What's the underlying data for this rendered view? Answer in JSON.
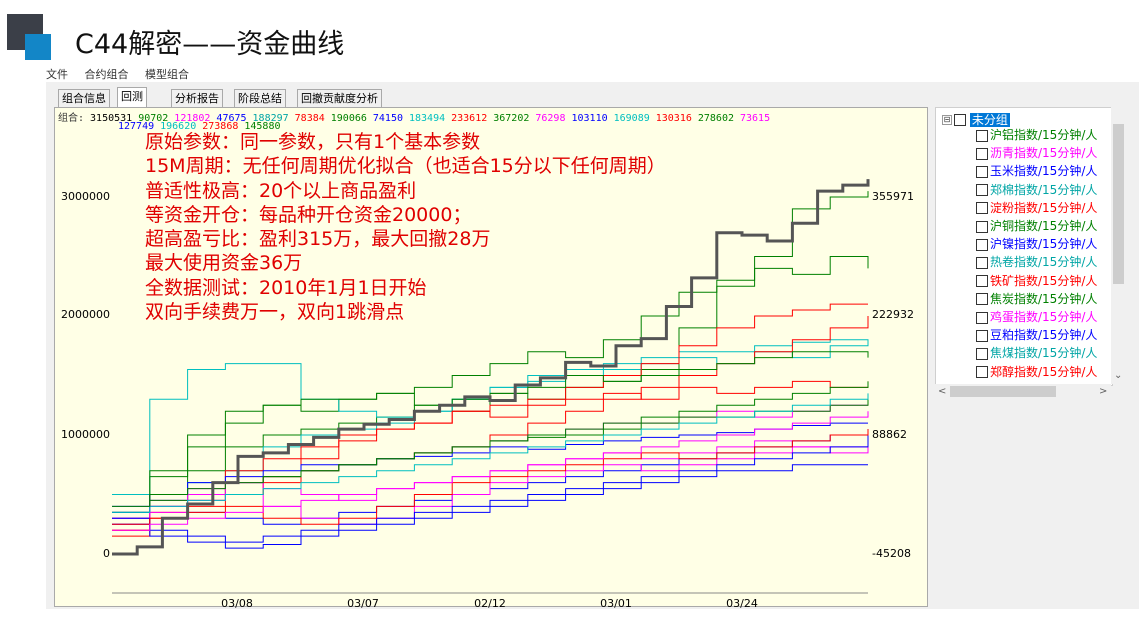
{
  "slide": {
    "title": "C44解密——资金曲线"
  },
  "menu": [
    "文件",
    "合约组合",
    "模型组合"
  ],
  "tabs": [
    {
      "label": "组合信息",
      "active": false
    },
    {
      "label": "回测",
      "active": true
    },
    {
      "label": "分析报告",
      "active": false
    },
    {
      "label": "阶段总结",
      "active": false
    },
    {
      "label": "回撤贡献度分析",
      "active": false
    }
  ],
  "legend": {
    "prefix": "组合:",
    "row1": [
      {
        "v": "3150531",
        "c": "#000000"
      },
      {
        "v": "90702",
        "c": "#008000"
      },
      {
        "v": "121802",
        "c": "#ff00ff"
      },
      {
        "v": "47675",
        "c": "#0000ff"
      },
      {
        "v": "188297",
        "c": "#00a5a5"
      },
      {
        "v": "78384",
        "c": "#ff0000"
      },
      {
        "v": "190066",
        "c": "#008000"
      },
      {
        "v": "74150",
        "c": "#0000ff"
      },
      {
        "v": "183494",
        "c": "#00bfbf"
      },
      {
        "v": "233612",
        "c": "#ff0000"
      },
      {
        "v": "367202",
        "c": "#008000"
      },
      {
        "v": "76298",
        "c": "#ff00ff"
      },
      {
        "v": "103110",
        "c": "#0000ff"
      },
      {
        "v": "169089",
        "c": "#00bfbf"
      },
      {
        "v": "130316",
        "c": "#ff0000"
      },
      {
        "v": "278602",
        "c": "#008000"
      },
      {
        "v": "73615",
        "c": "#ff00ff"
      }
    ],
    "row2": [
      {
        "v": "127749",
        "c": "#0000ff"
      },
      {
        "v": "196620",
        "c": "#00bfbf"
      },
      {
        "v": "273868",
        "c": "#ff0000"
      },
      {
        "v": "145880",
        "c": "#008000"
      }
    ]
  },
  "notes": [
    "原始参数：同一参数，只有1个基本参数",
    "15M周期：无任何周期优化拟合（也适合15分以下任何周期）",
    "普适性极高：20个以上商品盈利",
    "等资金开仓：每品种开仓资金20000；",
    "超高盈亏比：盈利315万，最大回撤28万",
    "最大使用资金36万",
    "全数据测试：2010年1月1日开始",
    "双向手续费万一，双向1跳滑点"
  ],
  "chart_data": {
    "type": "line",
    "ylim": [
      -100000,
      3300000
    ],
    "left_axis_ticks": [
      "3000000",
      "2000000",
      "1000000",
      "0"
    ],
    "right_axis_ticks": [
      "355971",
      "222932",
      "88862",
      "-45208"
    ],
    "x_tick_labels": [
      "03/08",
      "03/07",
      "02/12",
      "03/01",
      "03/24"
    ],
    "total_series": {
      "name": "组合",
      "color": "#555555",
      "values": [
        0,
        60000,
        300000,
        420000,
        600000,
        820000,
        850000,
        920000,
        980000,
        1050000,
        1090000,
        1130000,
        1200000,
        1250000,
        1320000,
        1290000,
        1420000,
        1480000,
        1610000,
        1580000,
        1750000,
        1810000,
        2080000,
        2320000,
        2700000,
        2680000,
        2630000,
        2780000,
        3050000,
        3100000,
        3150000
      ]
    },
    "series": [
      {
        "color": "#008000",
        "values": [
          300000,
          500000,
          700000,
          900000,
          1000000,
          1050000,
          1100000,
          1150000,
          1250000,
          1200000,
          1350000,
          1300000,
          1400000,
          1450000,
          1550000,
          1900000,
          2300000,
          2500000,
          2900000,
          3000000,
          3050000
        ]
      },
      {
        "color": "#008000",
        "values": [
          350000,
          650000,
          900000,
          1100000,
          1250000,
          1200000,
          1300000,
          1350000,
          1400000,
          1500000,
          1600000,
          1700000,
          1650000,
          1800000,
          2000000,
          2200000,
          2250000,
          2400000,
          2350000,
          2500000,
          2400000
        ]
      },
      {
        "color": "#00bfbf",
        "values": [
          500000,
          1300000,
          1550000,
          1600000,
          1600000,
          1300000,
          1200000,
          1150000,
          1200000,
          1300000,
          1400000,
          1500000,
          1550000,
          1600000,
          1650000,
          1700000,
          1700000,
          1750000,
          1780000,
          1800000,
          1750000
        ]
      },
      {
        "color": "#00bfbf",
        "values": [
          250000,
          450000,
          600000,
          700000,
          900000,
          1000000,
          1050000,
          1100000,
          1200000,
          1300000,
          1400000,
          1450000,
          1500000,
          1550000,
          1600000,
          1650000,
          1600000,
          1700000,
          1650000,
          1750000,
          1800000
        ]
      },
      {
        "color": "#ff0000",
        "values": [
          200000,
          400000,
          500000,
          700000,
          800000,
          900000,
          1000000,
          1050000,
          1100000,
          1200000,
          1250000,
          1300000,
          1400000,
          1500000,
          1600000,
          1750000,
          1900000,
          2000000,
          2050000,
          2100000,
          2100000
        ]
      },
      {
        "color": "#ff0000",
        "values": [
          150000,
          300000,
          400000,
          500000,
          600000,
          700000,
          750000,
          800000,
          850000,
          900000,
          1000000,
          1100000,
          1200000,
          1300000,
          1400000,
          1500000,
          1600000,
          1700000,
          1800000,
          1900000,
          2000000
        ]
      },
      {
        "color": "#008000",
        "values": [
          300000,
          700000,
          1000000,
          1200000,
          1250000,
          1300000,
          1300000,
          1350000,
          1250000,
          1300000,
          1350000,
          1400000,
          1500000,
          1450000,
          1500000,
          1550000,
          1600000,
          1650000,
          1700000,
          1700000,
          1650000
        ]
      },
      {
        "color": "#ff00ff",
        "values": [
          300000,
          450000,
          550000,
          600000,
          650000,
          700000,
          750000,
          800000,
          850000,
          900000,
          950000,
          1000000,
          1050000,
          1100000,
          1100000,
          1150000,
          1200000,
          1150000,
          1200000,
          1250000,
          1250000
        ]
      },
      {
        "color": "#ff0000",
        "values": [
          200000,
          350000,
          450000,
          500000,
          650000,
          800000,
          950000,
          1050000,
          1100000,
          1200000,
          1150000,
          1250000,
          1300000,
          1350000,
          1300000,
          1400000,
          1350000,
          1400000,
          1450000,
          1400000,
          1450000
        ]
      },
      {
        "color": "#0000ff",
        "values": [
          400000,
          500000,
          600000,
          650000,
          700000,
          750000,
          750000,
          800000,
          820000,
          850000,
          900000,
          880000,
          920000,
          950000,
          980000,
          1000000,
          1020000,
          1050000,
          1080000,
          1100000,
          1100000
        ]
      },
      {
        "color": "#008000",
        "values": [
          350000,
          450000,
          500000,
          600000,
          650000,
          700000,
          750000,
          800000,
          850000,
          900000,
          950000,
          980000,
          1000000,
          1050000,
          1100000,
          1150000,
          1150000,
          1200000,
          1200000,
          1250000,
          1300000
        ]
      },
      {
        "color": "#ff00ff",
        "values": [
          250000,
          350000,
          500000,
          600000,
          550000,
          500000,
          450000,
          550000,
          600000,
          650000,
          700000,
          750000,
          800000,
          850000,
          800000,
          850000,
          900000,
          950000,
          900000,
          900000,
          950000
        ]
      },
      {
        "color": "#0000ff",
        "values": [
          350000,
          400000,
          350000,
          300000,
          250000,
          300000,
          350000,
          400000,
          450000,
          500000,
          550000,
          600000,
          650000,
          700000,
          750000,
          800000,
          850000,
          900000,
          950000,
          1000000,
          1050000
        ]
      },
      {
        "color": "#ff00ff",
        "values": [
          300000,
          400000,
          450000,
          500000,
          400000,
          300000,
          250000,
          300000,
          400000,
          500000,
          600000,
          650000,
          700000,
          750000,
          700000,
          750000,
          800000,
          850000,
          900000,
          850000,
          900000
        ]
      },
      {
        "color": "#0000ff",
        "values": [
          300000,
          200000,
          150000,
          100000,
          150000,
          200000,
          250000,
          300000,
          350000,
          400000,
          450000,
          500000,
          550000,
          600000,
          650000,
          700000,
          750000,
          800000,
          850000,
          900000,
          1000000
        ]
      },
      {
        "color": "#0000ff",
        "values": [
          250000,
          150000,
          100000,
          50000,
          80000,
          150000,
          200000,
          250000,
          300000,
          350000,
          400000,
          450000,
          500000,
          550000,
          600000,
          650000,
          700000,
          700000,
          750000,
          750000,
          750000
        ]
      },
      {
        "color": "#ff0000",
        "values": [
          250000,
          300000,
          350000,
          400000,
          300000,
          250000,
          300000,
          400000,
          500000,
          600000,
          650000,
          700000,
          750000,
          800000,
          850000,
          800000,
          850000,
          900000,
          950000,
          1000000,
          1050000
        ]
      },
      {
        "color": "#00bfbf",
        "values": [
          350000,
          400000,
          450000,
          500000,
          550000,
          600000,
          650000,
          700000,
          750000,
          800000,
          850000,
          900000,
          950000,
          1000000,
          1050000,
          1100000,
          1150000,
          1200000,
          1250000,
          1300000,
          1350000
        ]
      },
      {
        "color": "#008000",
        "values": [
          400000,
          500000,
          550000,
          600000,
          650000,
          700000,
          750000,
          800000,
          850000,
          900000,
          950000,
          1000000,
          1050000,
          1100000,
          1150000,
          1200000,
          1250000,
          1300000,
          1350000,
          1400000,
          1450000
        ]
      },
      {
        "color": "#ff00ff",
        "values": [
          200000,
          250000,
          300000,
          350000,
          400000,
          450000,
          500000,
          550000,
          600000,
          650000,
          700000,
          750000,
          800000,
          850000,
          900000,
          950000,
          1000000,
          1050000,
          1100000,
          1150000,
          1200000
        ]
      }
    ]
  },
  "tree": {
    "root_label": "未分组",
    "expand_glyph": "⊟",
    "items": [
      {
        "label": "沪铝指数/15分钟/人",
        "color": "#008000"
      },
      {
        "label": "沥青指数/15分钟/人",
        "color": "#ff00ff"
      },
      {
        "label": "玉米指数/15分钟/人",
        "color": "#0000ff"
      },
      {
        "label": "郑棉指数/15分钟/人",
        "color": "#00a5a5"
      },
      {
        "label": "淀粉指数/15分钟/人",
        "color": "#ff0000"
      },
      {
        "label": "沪铜指数/15分钟/人",
        "color": "#008000"
      },
      {
        "label": "沪镍指数/15分钟/人",
        "color": "#0000ff"
      },
      {
        "label": "热卷指数/15分钟/人",
        "color": "#00a5a5"
      },
      {
        "label": "铁矿指数/15分钟/人",
        "color": "#ff0000"
      },
      {
        "label": "焦炭指数/15分钟/人",
        "color": "#008000"
      },
      {
        "label": "鸡蛋指数/15分钟/人",
        "color": "#ff00ff"
      },
      {
        "label": "豆粕指数/15分钟/人",
        "color": "#0000ff"
      },
      {
        "label": "焦煤指数/15分钟/人",
        "color": "#00a5a5"
      },
      {
        "label": "郑醇指数/15分钟/人",
        "color": "#ff0000"
      }
    ]
  },
  "scroll": {
    "left_arrow": "<",
    "right_arrow": ">",
    "down_arrow": "⌄"
  }
}
